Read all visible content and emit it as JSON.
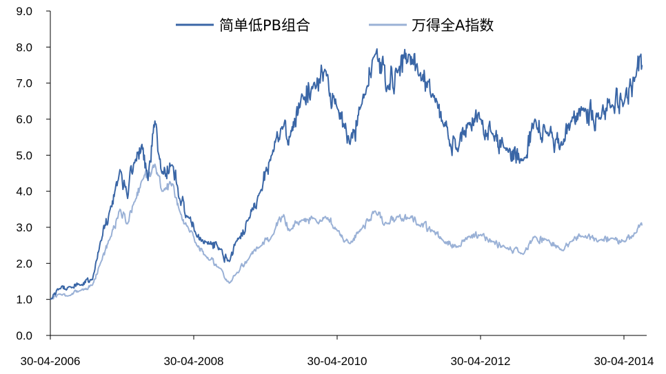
{
  "chart_data": {
    "type": "line",
    "title": "",
    "xlabel": "",
    "ylabel": "",
    "x_ticks": [
      "30-04-2006",
      "30-04-2008",
      "30-04-2010",
      "30-04-2012",
      "30-04-2014"
    ],
    "x_range": [
      "2006-04-30",
      "2014-07-31"
    ],
    "ylim": [
      0.0,
      9.0
    ],
    "y_ticks": [
      "0.0",
      "1.0",
      "2.0",
      "3.0",
      "4.0",
      "5.0",
      "6.0",
      "7.0",
      "8.0",
      "9.0"
    ],
    "grid": false,
    "legend_position": "top-center",
    "series": [
      {
        "name": "简单低PB组合",
        "color": "#3a66a6",
        "points": [
          [
            "2006-04-30",
            1.0
          ],
          [
            "2006-06-15",
            1.3
          ],
          [
            "2006-08-01",
            1.35
          ],
          [
            "2006-10-01",
            1.4
          ],
          [
            "2006-12-01",
            1.55
          ],
          [
            "2007-01-10",
            2.6
          ],
          [
            "2007-03-01",
            3.5
          ],
          [
            "2007-04-20",
            4.6
          ],
          [
            "2007-05-29",
            3.8
          ],
          [
            "2007-07-01",
            4.8
          ],
          [
            "2007-08-10",
            5.3
          ],
          [
            "2007-09-10",
            4.3
          ],
          [
            "2007-10-15",
            5.95
          ],
          [
            "2007-11-20",
            4.5
          ],
          [
            "2008-01-14",
            4.7
          ],
          [
            "2008-02-15",
            3.8
          ],
          [
            "2008-04-01",
            3.3
          ],
          [
            "2008-05-15",
            2.75
          ],
          [
            "2008-07-01",
            2.6
          ],
          [
            "2008-09-15",
            2.4
          ],
          [
            "2008-10-28",
            2.05
          ],
          [
            "2008-12-01",
            2.6
          ],
          [
            "2009-02-01",
            3.2
          ],
          [
            "2009-04-01",
            3.95
          ],
          [
            "2009-06-01",
            5.0
          ],
          [
            "2009-08-01",
            5.8
          ],
          [
            "2009-09-01",
            5.5
          ],
          [
            "2009-11-01",
            6.7
          ],
          [
            "2010-01-01",
            7.0
          ],
          [
            "2010-03-01",
            7.35
          ],
          [
            "2010-05-01",
            6.3
          ],
          [
            "2010-07-05",
            5.3
          ],
          [
            "2010-09-01",
            6.4
          ],
          [
            "2010-11-10",
            7.8
          ],
          [
            "2011-01-15",
            6.9
          ],
          [
            "2011-03-01",
            7.3
          ],
          [
            "2011-05-01",
            7.8
          ],
          [
            "2011-06-20",
            7.2
          ],
          [
            "2011-09-01",
            6.7
          ],
          [
            "2011-10-20",
            5.9
          ],
          [
            "2012-01-06",
            5.1
          ],
          [
            "2012-03-01",
            5.9
          ],
          [
            "2012-05-01",
            6.0
          ],
          [
            "2012-07-01",
            5.6
          ],
          [
            "2012-09-01",
            5.2
          ],
          [
            "2012-12-03",
            4.85
          ],
          [
            "2013-02-01",
            6.0
          ],
          [
            "2013-04-01",
            5.6
          ],
          [
            "2013-06-25",
            5.3
          ],
          [
            "2013-08-01",
            5.9
          ],
          [
            "2013-10-01",
            6.3
          ],
          [
            "2014-01-01",
            6.0
          ],
          [
            "2014-03-01",
            6.4
          ],
          [
            "2014-05-01",
            6.45
          ],
          [
            "2014-07-01",
            7.2
          ],
          [
            "2014-07-20",
            7.75
          ],
          [
            "2014-07-31",
            7.5
          ]
        ]
      },
      {
        "name": "万得全A指数",
        "color": "#9ab1d6",
        "points": [
          [
            "2006-04-30",
            1.0
          ],
          [
            "2006-06-15",
            1.15
          ],
          [
            "2006-08-01",
            1.1
          ],
          [
            "2006-10-01",
            1.25
          ],
          [
            "2006-12-01",
            1.4
          ],
          [
            "2007-01-10",
            2.0
          ],
          [
            "2007-03-01",
            2.7
          ],
          [
            "2007-04-20",
            3.5
          ],
          [
            "2007-05-29",
            3.1
          ],
          [
            "2007-07-01",
            3.7
          ],
          [
            "2007-08-10",
            4.3
          ],
          [
            "2007-09-10",
            4.4
          ],
          [
            "2007-10-15",
            4.75
          ],
          [
            "2007-11-20",
            4.0
          ],
          [
            "2008-01-14",
            4.2
          ],
          [
            "2008-02-15",
            3.5
          ],
          [
            "2008-04-01",
            3.0
          ],
          [
            "2008-05-15",
            2.5
          ],
          [
            "2008-07-01",
            2.2
          ],
          [
            "2008-09-15",
            1.85
          ],
          [
            "2008-10-28",
            1.45
          ],
          [
            "2008-12-01",
            1.7
          ],
          [
            "2009-02-01",
            2.1
          ],
          [
            "2009-04-01",
            2.45
          ],
          [
            "2009-06-01",
            2.75
          ],
          [
            "2009-08-01",
            3.35
          ],
          [
            "2009-09-01",
            2.9
          ],
          [
            "2009-11-01",
            3.2
          ],
          [
            "2010-01-01",
            3.25
          ],
          [
            "2010-03-01",
            3.3
          ],
          [
            "2010-05-01",
            2.9
          ],
          [
            "2010-07-05",
            2.55
          ],
          [
            "2010-09-01",
            2.95
          ],
          [
            "2010-11-10",
            3.45
          ],
          [
            "2011-01-15",
            3.1
          ],
          [
            "2011-03-01",
            3.3
          ],
          [
            "2011-05-01",
            3.25
          ],
          [
            "2011-06-20",
            3.05
          ],
          [
            "2011-09-01",
            2.9
          ],
          [
            "2011-10-20",
            2.65
          ],
          [
            "2012-01-06",
            2.45
          ],
          [
            "2012-03-01",
            2.75
          ],
          [
            "2012-05-01",
            2.8
          ],
          [
            "2012-07-01",
            2.6
          ],
          [
            "2012-09-01",
            2.45
          ],
          [
            "2012-12-03",
            2.25
          ],
          [
            "2013-02-01",
            2.75
          ],
          [
            "2013-04-01",
            2.65
          ],
          [
            "2013-06-25",
            2.35
          ],
          [
            "2013-08-01",
            2.6
          ],
          [
            "2013-10-01",
            2.75
          ],
          [
            "2014-01-01",
            2.65
          ],
          [
            "2014-03-01",
            2.7
          ],
          [
            "2014-05-01",
            2.6
          ],
          [
            "2014-07-01",
            2.85
          ],
          [
            "2014-07-20",
            3.05
          ],
          [
            "2014-07-31",
            3.05
          ]
        ]
      }
    ]
  }
}
